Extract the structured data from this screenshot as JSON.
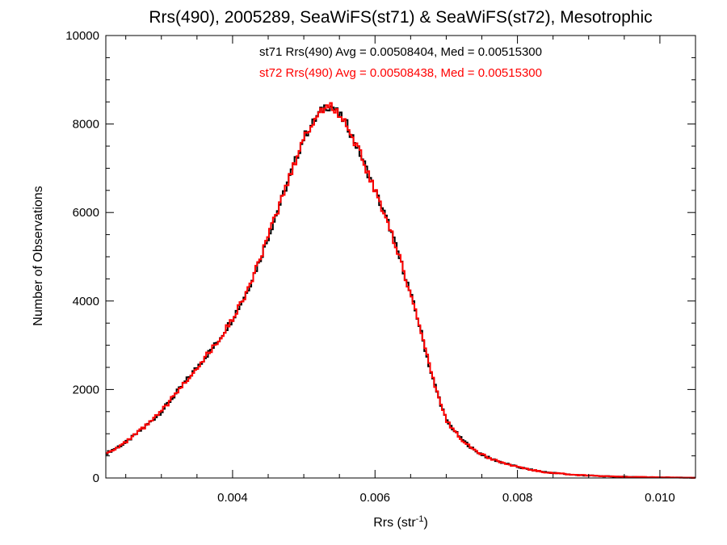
{
  "chart_data": {
    "type": "line",
    "step": true,
    "title": "Rrs(490), 2005289, SeaWiFS(st71) & SeaWiFS(st72), Mesotrophic",
    "xlabel_main": "Rrs (str",
    "xlabel_sup": "-1",
    "xlabel_end": ")",
    "ylabel": "Number of Observations",
    "xlim": [
      0.00222,
      0.0105
    ],
    "ylim": [
      0,
      10000
    ],
    "xticks": [
      0.004,
      0.006,
      0.008,
      0.01
    ],
    "xtick_labels": [
      "0.004",
      "0.006",
      "0.008",
      "0.010"
    ],
    "yticks": [
      0,
      2000,
      4000,
      6000,
      8000,
      10000
    ],
    "ytick_labels": [
      "0",
      "2000",
      "4000",
      "6000",
      "8000",
      "10000"
    ],
    "annotations": [
      {
        "text": "st71 Rrs(490) Avg = 0.00508404, Med = 0.00515300",
        "color": "#000000"
      },
      {
        "text": "st72 Rrs(490) Avg = 0.00508438, Med = 0.00515300",
        "color": "#ff0000"
      }
    ],
    "series": [
      {
        "color_hex": "#000000",
        "x": [
          0.00222,
          0.0025,
          0.0028,
          0.003,
          0.0032,
          0.0034,
          0.0036,
          0.0038,
          0.004,
          0.0042,
          0.0044,
          0.0046,
          0.0048,
          0.005,
          0.0052,
          0.0053,
          0.0054,
          0.0055,
          0.0056,
          0.0058,
          0.006,
          0.0062,
          0.0064,
          0.0066,
          0.0068,
          0.007,
          0.0072,
          0.0074,
          0.0076,
          0.0078,
          0.008,
          0.0082,
          0.0084,
          0.0086,
          0.0088,
          0.009,
          0.0092,
          0.0094,
          0.0096,
          0.0098,
          0.01,
          0.0102,
          0.0105
        ],
        "y": [
          550,
          800,
          1200,
          1500,
          1900,
          2300,
          2700,
          3100,
          3600,
          4200,
          5000,
          5900,
          6800,
          7700,
          8200,
          8400,
          8400,
          8200,
          8000,
          7300,
          6500,
          5700,
          4700,
          3600,
          2300,
          1300,
          900,
          620,
          450,
          340,
          250,
          180,
          130,
          100,
          70,
          55,
          40,
          30,
          25,
          20,
          15,
          10,
          5
        ]
      },
      {
        "color_hex": "#ff0000",
        "x": [
          0.00222,
          0.0025,
          0.0028,
          0.003,
          0.0032,
          0.0034,
          0.0036,
          0.0038,
          0.004,
          0.0042,
          0.0044,
          0.0046,
          0.0048,
          0.005,
          0.0052,
          0.0053,
          0.0054,
          0.0055,
          0.0056,
          0.0058,
          0.006,
          0.0062,
          0.0064,
          0.0066,
          0.0068,
          0.007,
          0.0072,
          0.0074,
          0.0076,
          0.0078,
          0.008,
          0.0082,
          0.0084,
          0.0086,
          0.0088,
          0.009,
          0.0092,
          0.0094,
          0.0096,
          0.0098,
          0.01,
          0.0102,
          0.0105
        ],
        "y": [
          550,
          800,
          1200,
          1500,
          1900,
          2300,
          2700,
          3100,
          3600,
          4200,
          5000,
          5900,
          6800,
          7700,
          8200,
          8400,
          8400,
          8200,
          8000,
          7300,
          6500,
          5700,
          4700,
          3600,
          2300,
          1300,
          900,
          620,
          450,
          340,
          250,
          180,
          130,
          100,
          70,
          55,
          40,
          30,
          25,
          20,
          15,
          10,
          5
        ]
      }
    ],
    "grid": false,
    "legend": "none"
  }
}
